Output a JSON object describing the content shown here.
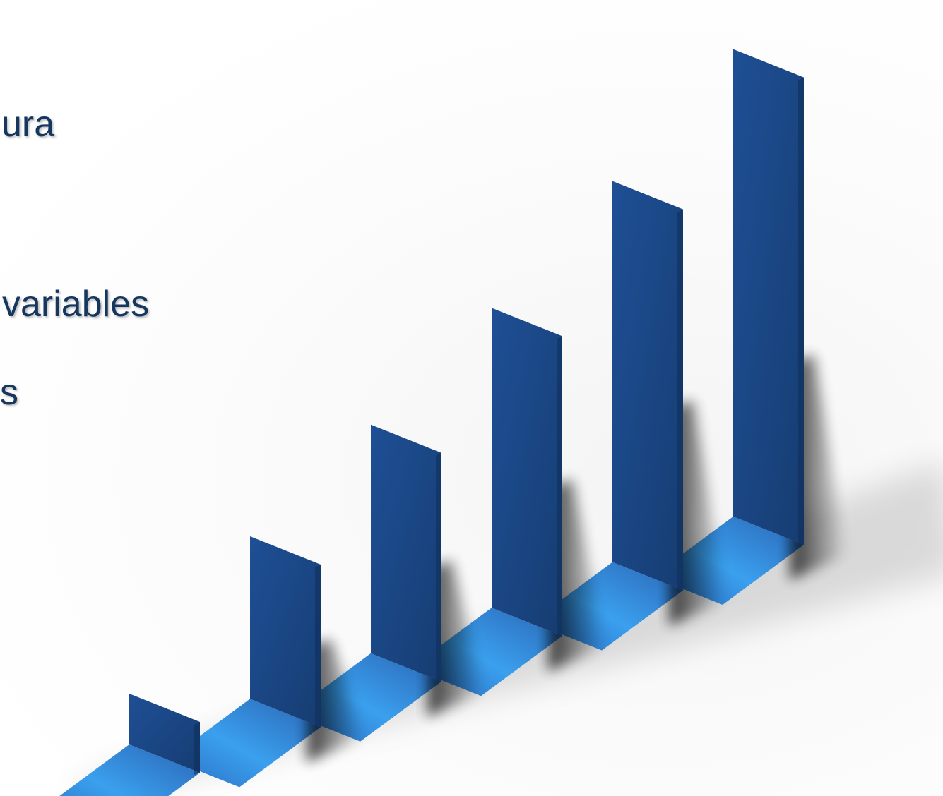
{
  "slide": {
    "text_fragments": [
      "ura",
      "variables",
      "s"
    ]
  },
  "colors": {
    "bar_front": "#1f4f93",
    "bar_dark": "#163d72",
    "floor_light": "#3aa0ee",
    "floor_dark": "#2b6cc1",
    "shadow": "#000000",
    "text": "#14365f"
  },
  "chart_data": {
    "type": "bar",
    "categories": [
      "",
      "",
      "",
      "",
      "",
      ""
    ],
    "values": [
      1,
      3.2,
      4.5,
      5.9,
      7.5,
      9.2
    ],
    "title": "",
    "xlabel": "",
    "ylabel": "",
    "ylim": [
      0,
      10
    ],
    "grid": false,
    "style": "3d-perspective"
  }
}
